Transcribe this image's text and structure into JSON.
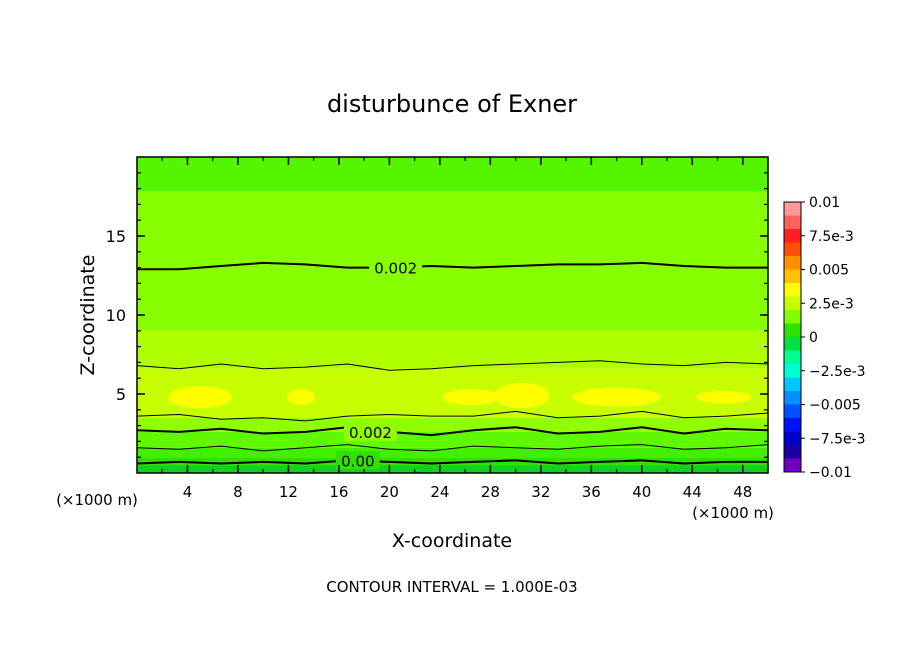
{
  "chart_data": {
    "type": "contour",
    "title": "disturbunce of Exner",
    "xlabel": "X-coordinate",
    "ylabel": "Z-coordinate",
    "x_unit_left": "(×1000 m)",
    "x_unit_right": "(×1000 m)",
    "footer": "CONTOUR INTERVAL = 1.000E-03",
    "xlim": [
      0,
      50
    ],
    "ylim": [
      0,
      20
    ],
    "xticks": [
      "4",
      "8",
      "12",
      "16",
      "20",
      "24",
      "28",
      "32",
      "36",
      "40",
      "44",
      "48"
    ],
    "yticks": [
      "5",
      "10",
      "15"
    ],
    "contour_labels": [
      "0.002",
      "0.002",
      "0.00"
    ],
    "colorbar": {
      "labels": [
        "0.01",
        "7.5e-3",
        "0.005",
        "2.5e-3",
        "0",
        "−2.5e-3",
        "−0.005",
        "−7.5e-3",
        "−0.01"
      ],
      "values": [
        0.01,
        0.0075,
        0.005,
        0.0025,
        0,
        -0.0025,
        -0.005,
        -0.0075,
        -0.01
      ],
      "colors": [
        "#ff9999",
        "#ff6060",
        "#ff2020",
        "#ff5000",
        "#ff9000",
        "#ffc000",
        "#ffff00",
        "#c8ff00",
        "#80ff00",
        "#30e000",
        "#00e040",
        "#00ff90",
        "#00ffd0",
        "#00c8ff",
        "#0090ff",
        "#0050ff",
        "#0010ff",
        "#0000c8",
        "#1a00a0",
        "#7000c0"
      ]
    },
    "bands": [
      {
        "z0": 0.0,
        "z1": 0.5,
        "color": "#10d020"
      },
      {
        "z0": 0.5,
        "z1": 1.0,
        "color": "#30e000"
      },
      {
        "z0": 1.0,
        "z1": 1.6,
        "color": "#44ee00"
      },
      {
        "z0": 1.6,
        "z1": 2.6,
        "color": "#60f800"
      },
      {
        "z0": 2.6,
        "z1": 3.5,
        "color": "#90ff00"
      },
      {
        "z0": 3.5,
        "z1": 6.6,
        "color": "#c8ff00"
      },
      {
        "z0": 6.6,
        "z1": 9.0,
        "color": "#b0ff00"
      },
      {
        "z0": 9.0,
        "z1": 17.8,
        "color": "#88ff00"
      },
      {
        "z0": 17.8,
        "z1": 20.0,
        "color": "#55f500"
      }
    ],
    "blobs": [
      {
        "x": 5.0,
        "z": 4.8,
        "rx": 2.5,
        "rz": 0.7
      },
      {
        "x": 13.0,
        "z": 4.8,
        "rx": 1.1,
        "rz": 0.5
      },
      {
        "x": 26.5,
        "z": 4.8,
        "rx": 2.3,
        "rz": 0.5
      },
      {
        "x": 30.5,
        "z": 4.9,
        "rx": 2.2,
        "rz": 0.8
      },
      {
        "x": 38.0,
        "z": 4.8,
        "rx": 3.5,
        "rz": 0.6
      },
      {
        "x": 46.5,
        "z": 4.8,
        "rx": 2.2,
        "rz": 0.4
      }
    ],
    "contours": [
      {
        "level": "0.002",
        "heavy": true,
        "label": 0,
        "label_x": 20.5,
        "z": [
          12.9,
          12.9,
          13.1,
          13.3,
          13.2,
          13.0,
          13.0,
          13.1,
          13.0,
          13.1,
          13.2,
          13.2,
          13.3,
          13.1,
          13.0,
          13.0
        ]
      },
      {
        "level": "",
        "heavy": false,
        "label": null,
        "z": [
          6.8,
          6.6,
          6.9,
          6.6,
          6.7,
          6.9,
          6.5,
          6.6,
          6.8,
          6.9,
          7.0,
          7.1,
          6.9,
          6.8,
          7.0,
          6.9
        ]
      },
      {
        "level": "",
        "heavy": false,
        "label": null,
        "z": [
          3.6,
          3.7,
          3.4,
          3.5,
          3.3,
          3.6,
          3.7,
          3.6,
          3.6,
          3.9,
          3.5,
          3.6,
          3.9,
          3.5,
          3.6,
          3.8
        ]
      },
      {
        "level": "0.002",
        "heavy": true,
        "label": 1,
        "label_x": 18.5,
        "z": [
          2.7,
          2.6,
          2.8,
          2.5,
          2.6,
          2.9,
          2.6,
          2.4,
          2.7,
          2.9,
          2.5,
          2.6,
          2.9,
          2.5,
          2.8,
          2.7
        ]
      },
      {
        "level": "",
        "heavy": false,
        "label": null,
        "z": [
          1.6,
          1.5,
          1.7,
          1.4,
          1.6,
          1.8,
          1.5,
          1.4,
          1.7,
          1.6,
          1.5,
          1.7,
          1.8,
          1.5,
          1.6,
          1.8
        ]
      },
      {
        "level": "0.00",
        "heavy": true,
        "label": 2,
        "label_x": 17.5,
        "z": [
          0.6,
          0.7,
          0.6,
          0.7,
          0.6,
          0.8,
          0.7,
          0.6,
          0.7,
          0.8,
          0.6,
          0.7,
          0.8,
          0.6,
          0.7,
          0.7
        ]
      }
    ]
  }
}
